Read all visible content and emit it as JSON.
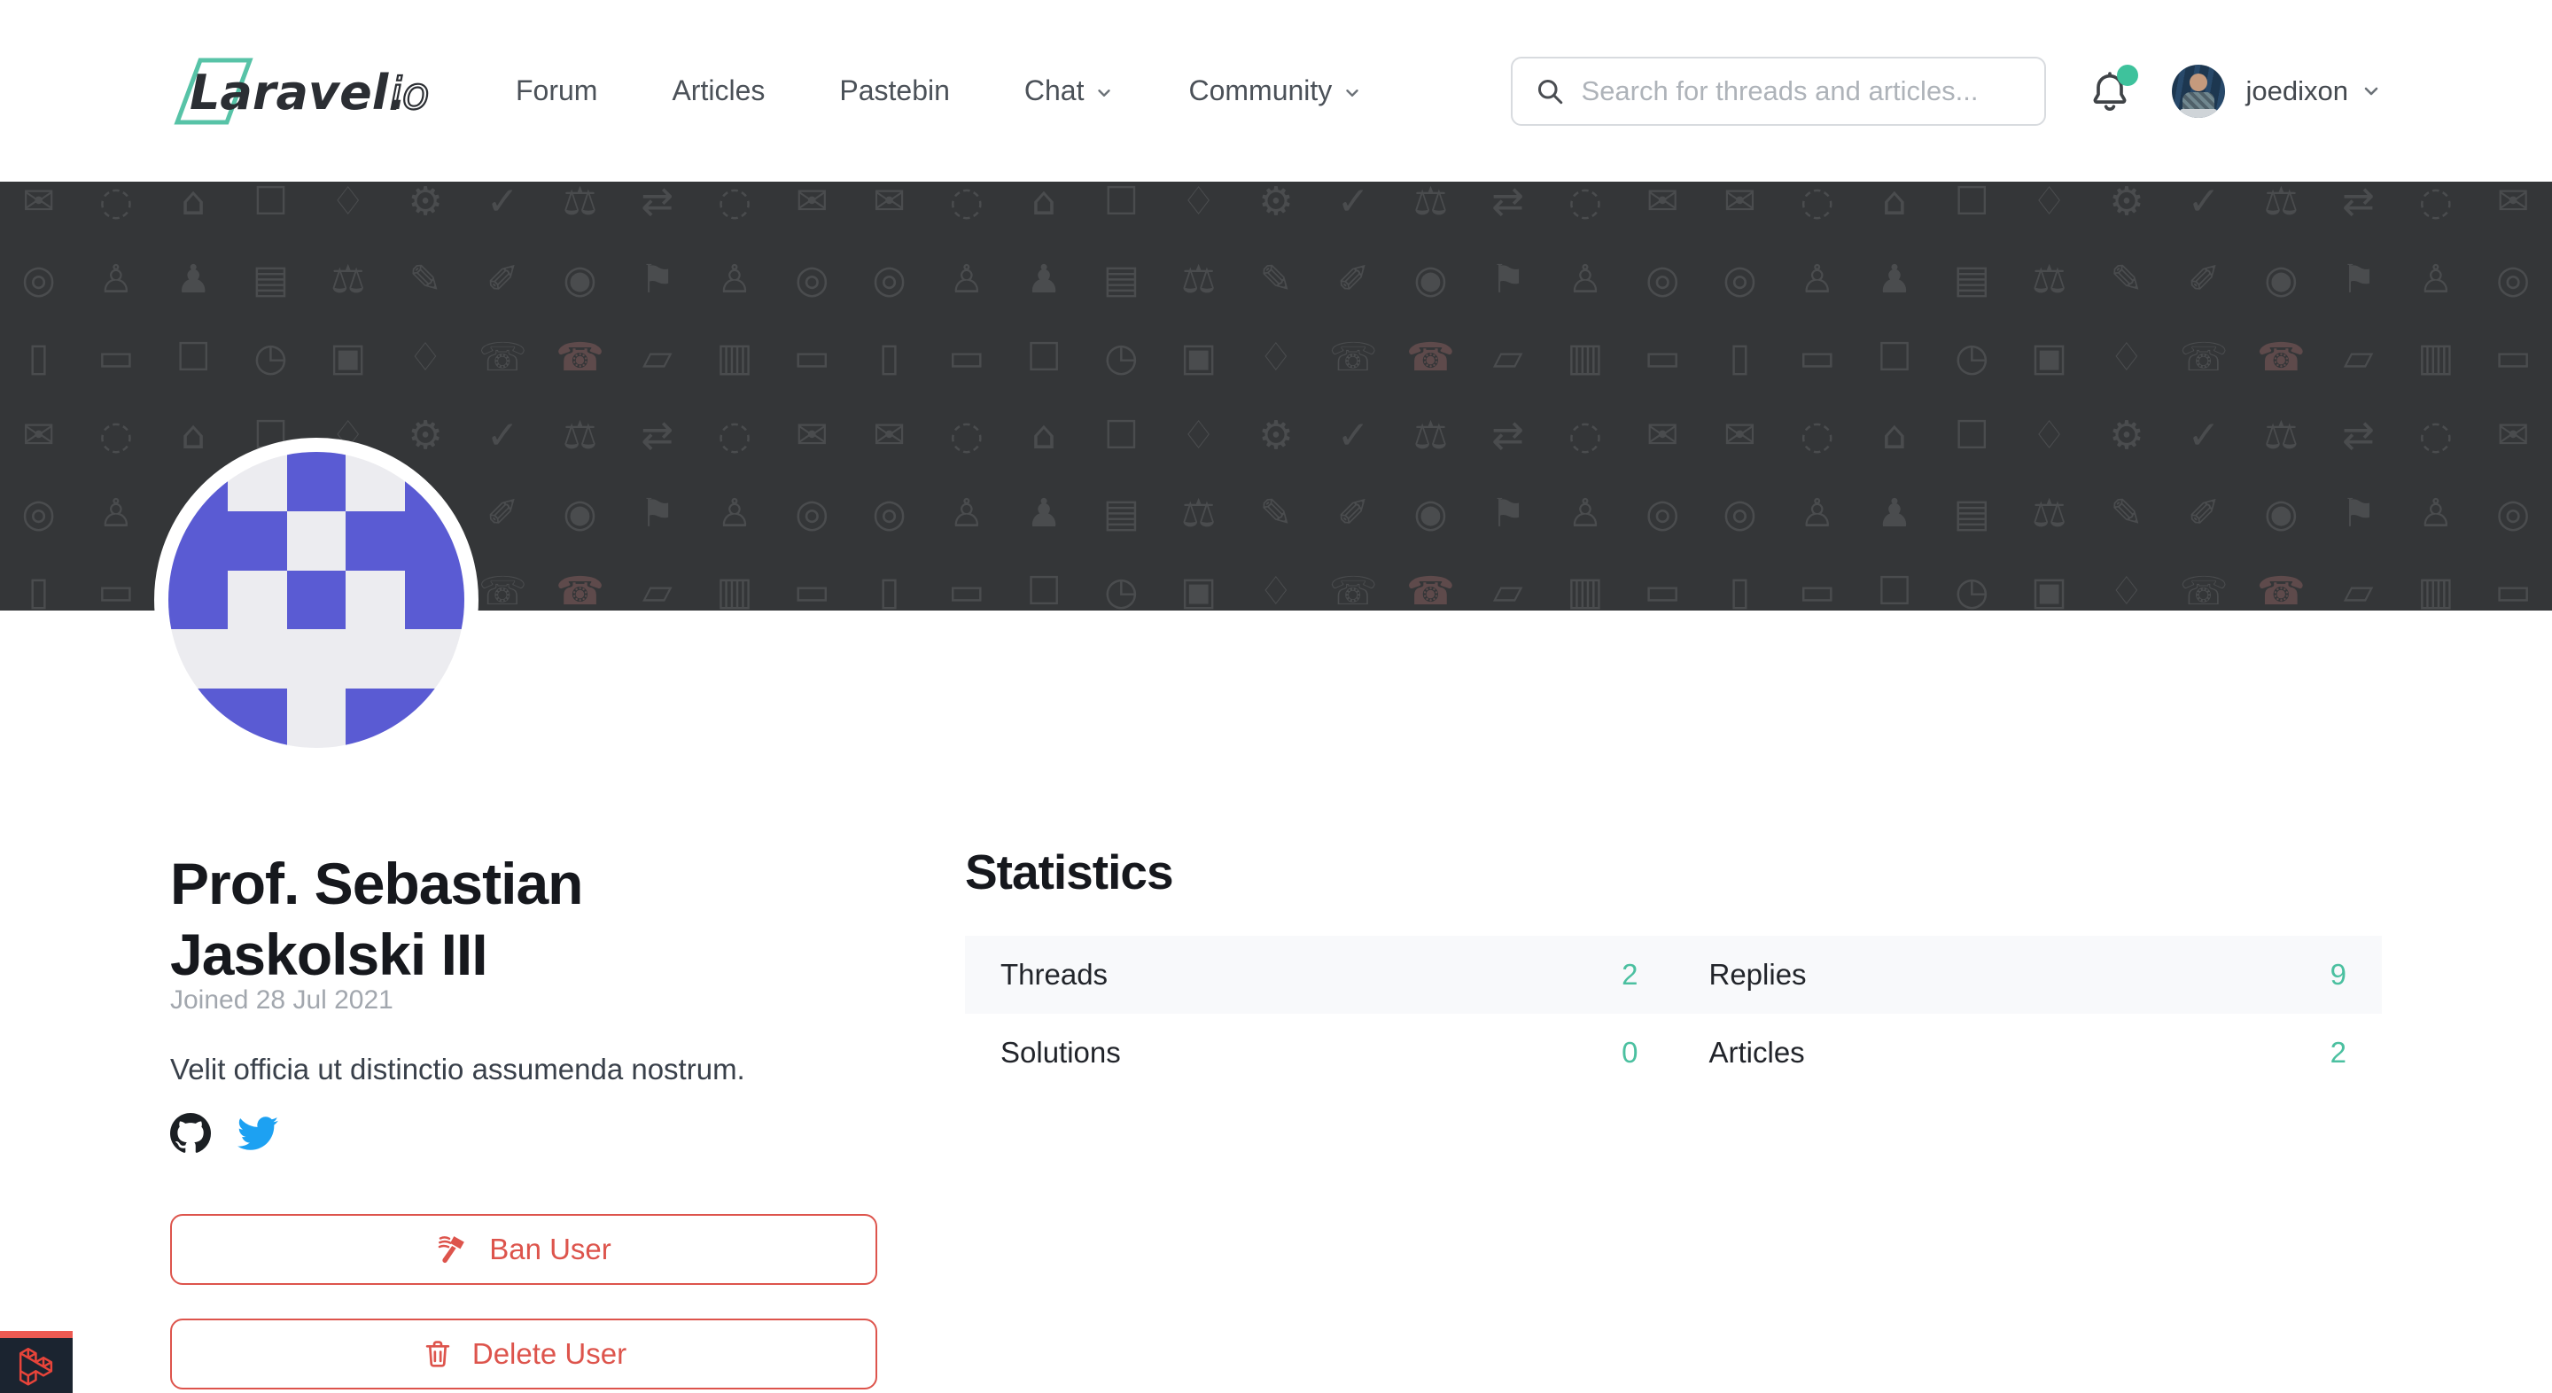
{
  "header": {
    "logo": {
      "text_main": "Laravel.",
      "text_suffix": "io"
    },
    "nav": [
      {
        "label": "Forum",
        "has_dropdown": false
      },
      {
        "label": "Articles",
        "has_dropdown": false
      },
      {
        "label": "Pastebin",
        "has_dropdown": false
      },
      {
        "label": "Chat",
        "has_dropdown": true
      },
      {
        "label": "Community",
        "has_dropdown": true
      }
    ],
    "search": {
      "placeholder": "Search for threads and articles..."
    },
    "notifications": {
      "has_unread": true
    },
    "user": {
      "name": "joedixon"
    }
  },
  "banner": {
    "accent_glyph": "☎",
    "pattern_rows": [
      [
        "✉",
        "◌",
        "⌂",
        "☐",
        "♢",
        "⚙",
        "✓",
        "⚖",
        "⇄",
        "◌",
        "✉"
      ],
      [
        "◎",
        "♙",
        "♟",
        "▤",
        "⚖",
        "✎",
        "✐",
        "◉",
        "⚑",
        "♙",
        "◎"
      ],
      [
        "▯",
        "▭",
        "☐",
        "◷",
        "▣",
        "♢",
        "☏",
        "☎",
        "▱",
        "▥",
        "▭"
      ]
    ]
  },
  "profile": {
    "name": "Prof. Sebastian Jaskolski III",
    "joined": "Joined 28 Jul 2021",
    "bio": "Velit officia ut distinctio assumenda nostrum.",
    "identicon_grid": [
      "10101",
      "11011",
      "10101",
      "00000",
      "11011"
    ],
    "actions": [
      {
        "label": "Ban User"
      },
      {
        "label": "Delete User"
      }
    ]
  },
  "statistics": {
    "title": "Statistics",
    "items": [
      {
        "label": "Threads",
        "value": "2"
      },
      {
        "label": "Replies",
        "value": "9"
      },
      {
        "label": "Solutions",
        "value": "0"
      },
      {
        "label": "Articles",
        "value": "2"
      }
    ]
  },
  "colors": {
    "banner_bg": "#343638",
    "banner_glyph": "#4a4c4e",
    "banner_accent": "#5e4a4b",
    "identicon_purple": "#5a5bd3",
    "identicon_bg": "#ececf0",
    "teal": "#4bc0a0",
    "red": "#dd544c",
    "green_dot": "#3ec29c",
    "twitter_blue": "#1da1f2",
    "logo_green": "#57c3a7",
    "logo_dark": "#2b2e33",
    "debug_red": "#e8443a",
    "debug_bg": "#1b2430"
  }
}
